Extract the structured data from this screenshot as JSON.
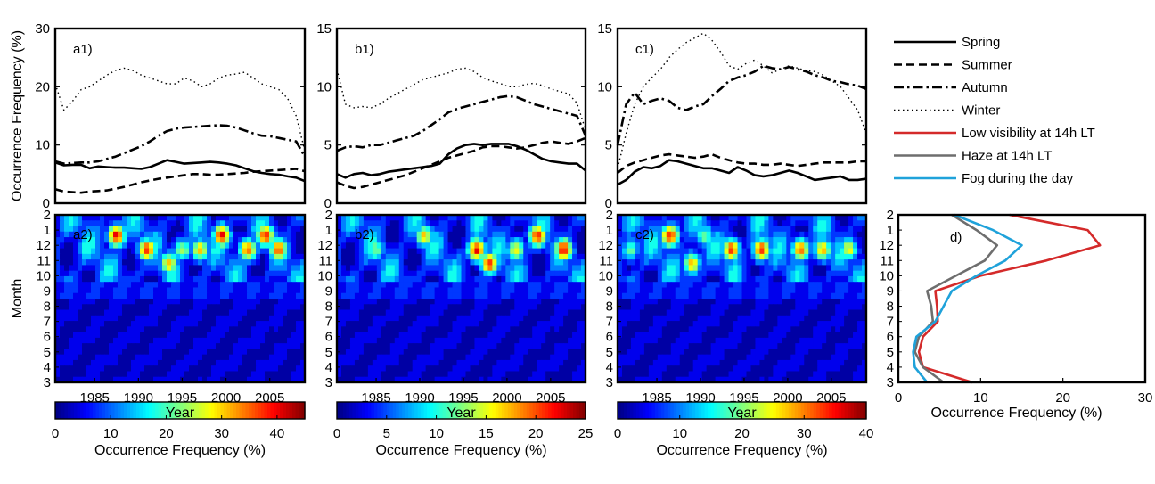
{
  "chart_data": [
    {
      "panel": "a1",
      "type": "line",
      "ylabel": "Occurrence Frequency (%)",
      "ylim": [
        0,
        30
      ],
      "yticks": [
        "0",
        "10",
        "20",
        "30"
      ],
      "xlim": [
        1980,
        2009
      ],
      "x": [
        1980,
        1981,
        1982,
        1983,
        1984,
        1985,
        1986,
        1987,
        1988,
        1989,
        1990,
        1991,
        1992,
        1993,
        1994,
        1995,
        1996,
        1997,
        1998,
        1999,
        2000,
        2001,
        2002,
        2003,
        2004,
        2005,
        2006,
        2007,
        2008,
        2009
      ],
      "series": [
        {
          "name": "Spring",
          "style": "solid",
          "values": [
            7.0,
            6.5,
            6.6,
            6.6,
            6.0,
            6.3,
            6.2,
            6.1,
            6.1,
            6.0,
            5.9,
            6.2,
            6.8,
            7.4,
            7.1,
            6.8,
            6.9,
            7.0,
            7.1,
            7.0,
            6.8,
            6.5,
            6.0,
            5.5,
            5.2,
            5.0,
            4.9,
            4.6,
            4.4,
            3.8
          ]
        },
        {
          "name": "Summer",
          "style": "dashed",
          "values": [
            2.4,
            2.0,
            1.9,
            1.8,
            2.0,
            2.1,
            2.2,
            2.5,
            2.8,
            3.2,
            3.6,
            3.9,
            4.2,
            4.4,
            4.6,
            4.8,
            5.0,
            5.0,
            4.9,
            4.9,
            5.0,
            5.1,
            5.2,
            5.4,
            5.5,
            5.6,
            5.7,
            5.8,
            5.9,
            5.5
          ]
        },
        {
          "name": "Autumn",
          "style": "dashdot",
          "values": [
            7.2,
            6.8,
            6.9,
            7.0,
            7.0,
            7.2,
            7.6,
            8.0,
            8.6,
            9.2,
            9.8,
            10.6,
            11.6,
            12.4,
            12.8,
            13.0,
            13.1,
            13.2,
            13.3,
            13.4,
            13.3,
            13.0,
            12.5,
            12.0,
            11.6,
            11.5,
            11.2,
            10.9,
            10.6,
            8.0
          ]
        },
        {
          "name": "Winter",
          "style": "dotted",
          "values": [
            20.5,
            16.0,
            17.5,
            19.5,
            20.0,
            21.0,
            22.0,
            22.8,
            23.2,
            22.8,
            22.0,
            21.5,
            21.0,
            20.5,
            20.5,
            21.5,
            21.0,
            20.0,
            20.5,
            21.5,
            22.0,
            22.2,
            22.5,
            21.5,
            20.5,
            20.0,
            19.5,
            18.0,
            15.0,
            9.0
          ]
        }
      ]
    },
    {
      "panel": "b1",
      "type": "line",
      "ylim": [
        0,
        15
      ],
      "yticks": [
        "0",
        "5",
        "10",
        "15"
      ],
      "xlim": [
        1980,
        2009
      ],
      "x": [
        1980,
        1981,
        1982,
        1983,
        1984,
        1985,
        1986,
        1987,
        1988,
        1989,
        1990,
        1991,
        1992,
        1993,
        1994,
        1995,
        1996,
        1997,
        1998,
        1999,
        2000,
        2001,
        2002,
        2003,
        2004,
        2005,
        2006,
        2007,
        2008,
        2009
      ],
      "series": [
        {
          "name": "Spring",
          "style": "solid",
          "values": [
            2.5,
            2.2,
            2.5,
            2.6,
            2.4,
            2.5,
            2.7,
            2.8,
            2.9,
            3.0,
            3.1,
            3.2,
            3.4,
            4.2,
            4.7,
            5.0,
            5.1,
            5.0,
            5.1,
            5.1,
            5.1,
            4.9,
            4.6,
            4.2,
            3.8,
            3.6,
            3.5,
            3.4,
            3.4,
            2.8
          ]
        },
        {
          "name": "Summer",
          "style": "dashed",
          "values": [
            1.8,
            1.5,
            1.3,
            1.4,
            1.6,
            1.8,
            2.0,
            2.2,
            2.4,
            2.7,
            3.0,
            3.3,
            3.6,
            3.9,
            4.1,
            4.3,
            4.5,
            4.8,
            4.9,
            4.9,
            4.8,
            4.7,
            4.8,
            5.0,
            5.2,
            5.3,
            5.2,
            5.1,
            5.3,
            5.6
          ]
        },
        {
          "name": "Autumn",
          "style": "dashdot",
          "values": [
            4.5,
            4.8,
            4.9,
            4.8,
            5.0,
            5.0,
            5.2,
            5.4,
            5.6,
            5.8,
            6.2,
            6.7,
            7.2,
            7.8,
            8.1,
            8.3,
            8.5,
            8.7,
            8.9,
            9.1,
            9.2,
            9.1,
            8.8,
            8.5,
            8.3,
            8.1,
            7.9,
            7.7,
            7.5,
            5.8
          ]
        },
        {
          "name": "Winter",
          "style": "dotted",
          "values": [
            11.5,
            8.5,
            8.2,
            8.3,
            8.2,
            8.5,
            9.0,
            9.4,
            9.8,
            10.2,
            10.6,
            10.8,
            11.0,
            11.2,
            11.5,
            11.6,
            11.3,
            10.8,
            10.5,
            10.3,
            10.0,
            10.0,
            10.2,
            10.3,
            10.1,
            9.8,
            9.6,
            9.4,
            8.6,
            6.3
          ]
        }
      ]
    },
    {
      "panel": "c1",
      "type": "line",
      "ylim": [
        0,
        15
      ],
      "yticks": [
        "0",
        "5",
        "10",
        "15"
      ],
      "xlim": [
        1980,
        2009
      ],
      "x": [
        1980,
        1981,
        1982,
        1983,
        1984,
        1985,
        1986,
        1987,
        1988,
        1989,
        1990,
        1991,
        1992,
        1993,
        1994,
        1995,
        1996,
        1997,
        1998,
        1999,
        2000,
        2001,
        2002,
        2003,
        2004,
        2005,
        2006,
        2007,
        2008,
        2009
      ],
      "series": [
        {
          "name": "Spring",
          "style": "solid",
          "values": [
            1.6,
            2.0,
            2.7,
            3.1,
            3.0,
            3.2,
            3.7,
            3.6,
            3.4,
            3.2,
            3.0,
            3.0,
            2.8,
            2.6,
            3.1,
            2.8,
            2.4,
            2.3,
            2.4,
            2.6,
            2.8,
            2.6,
            2.3,
            2.0,
            2.1,
            2.2,
            2.3,
            2.0,
            2.0,
            2.1
          ]
        },
        {
          "name": "Summer",
          "style": "dashed",
          "values": [
            2.6,
            3.2,
            3.5,
            3.7,
            3.9,
            4.1,
            4.2,
            4.1,
            4.0,
            3.9,
            4.0,
            4.2,
            3.9,
            3.7,
            3.5,
            3.4,
            3.4,
            3.3,
            3.3,
            3.4,
            3.3,
            3.2,
            3.3,
            3.4,
            3.5,
            3.5,
            3.5,
            3.5,
            3.6,
            3.6
          ]
        },
        {
          "name": "Autumn",
          "style": "dashdot",
          "values": [
            5.0,
            8.5,
            9.5,
            8.5,
            8.8,
            9.0,
            8.8,
            8.2,
            8.0,
            8.3,
            8.5,
            9.2,
            9.8,
            10.5,
            10.8,
            11.0,
            11.3,
            11.8,
            11.6,
            11.5,
            11.7,
            11.5,
            11.3,
            11.0,
            10.8,
            10.5,
            10.4,
            10.2,
            10.1,
            9.8
          ]
        },
        {
          "name": "Winter",
          "style": "dotted",
          "values": [
            3.0,
            6.0,
            8.5,
            10.0,
            10.8,
            11.5,
            12.5,
            13.2,
            13.8,
            14.2,
            14.6,
            14.0,
            13.0,
            11.8,
            11.5,
            12.0,
            12.3,
            11.8,
            11.2,
            11.5,
            11.8,
            11.6,
            11.4,
            11.3,
            11.0,
            10.5,
            10.0,
            9.0,
            8.0,
            6.0
          ]
        }
      ]
    },
    {
      "panel": "a2",
      "type": "heatmap",
      "xlabel": "Year",
      "ylabel": "Month",
      "xticks": [
        "1985",
        "1990",
        "1995",
        "2000",
        "2005"
      ],
      "months_axis": [
        "2",
        "1",
        "12",
        "11",
        "10",
        "9",
        "8",
        "7",
        "6",
        "5",
        "4",
        "3"
      ],
      "colorbar": {
        "min": 0,
        "max": 45,
        "ticks": [
          "0",
          "10",
          "20",
          "30",
          "40"
        ],
        "label": "Occurrence Frequency (%)"
      },
      "hotspots": [
        [
          1987.5,
          1,
          40
        ],
        [
          1991,
          12,
          37
        ],
        [
          1993.5,
          11,
          30
        ],
        [
          1997,
          12,
          30
        ],
        [
          1999.5,
          1,
          40
        ],
        [
          2002.5,
          12,
          35
        ],
        [
          2004.5,
          1,
          38
        ],
        [
          2006,
          12,
          36
        ],
        [
          1984,
          12,
          20
        ],
        [
          1995,
          12,
          25
        ]
      ]
    },
    {
      "panel": "b2",
      "type": "heatmap",
      "xlabel": "Year",
      "xticks": [
        "1985",
        "1990",
        "1995",
        "2000",
        "2005"
      ],
      "months_axis": [
        "2",
        "1",
        "12",
        "11",
        "10",
        "9",
        "8",
        "7",
        "6",
        "5",
        "4",
        "3"
      ],
      "colorbar": {
        "min": 0,
        "max": 25,
        "ticks": [
          "0",
          "5",
          "10",
          "15",
          "20",
          "25"
        ],
        "label": "Occurrence Frequency (%)"
      },
      "hotspots": [
        [
          1990.5,
          1,
          17
        ],
        [
          1996.5,
          12,
          22
        ],
        [
          1998,
          11,
          21
        ],
        [
          2003.5,
          1,
          22
        ],
        [
          2006.5,
          12,
          22
        ],
        [
          2001,
          12,
          16
        ],
        [
          1985,
          12,
          13
        ]
      ]
    },
    {
      "panel": "c2",
      "type": "heatmap",
      "xlabel": "Year",
      "xticks": [
        "1985",
        "1990",
        "1995",
        "2000",
        "2005"
      ],
      "months_axis": [
        "2",
        "1",
        "12",
        "11",
        "10",
        "9",
        "8",
        "7",
        "6",
        "5",
        "4",
        "3"
      ],
      "colorbar": {
        "min": 0,
        "max": 40,
        "ticks": [
          "0",
          "10",
          "20",
          "30",
          "40"
        ],
        "label": "Occurrence Frequency (%)"
      },
      "hotspots": [
        [
          1986.5,
          1,
          35
        ],
        [
          1989,
          11,
          27
        ],
        [
          1993.5,
          12,
          33
        ],
        [
          1997,
          12,
          33
        ],
        [
          2001.5,
          12,
          32
        ],
        [
          2004,
          12,
          27
        ],
        [
          2007,
          12,
          25
        ],
        [
          1990.5,
          1,
          20
        ],
        [
          1982,
          12,
          20
        ]
      ]
    },
    {
      "panel": "d",
      "type": "line",
      "xlabel": "Occurrence Frequency (%)",
      "xlim": [
        0,
        30
      ],
      "xticks": [
        "0",
        "10",
        "20",
        "30"
      ],
      "months_axis": [
        "2",
        "1",
        "12",
        "11",
        "10",
        "9",
        "8",
        "7",
        "6",
        "5",
        "4",
        "3"
      ],
      "series": [
        {
          "name": "Low visibility at 14h LT",
          "color": "#d42a2a",
          "values": [
            13.5,
            23.0,
            24.5,
            18.0,
            10.0,
            4.5,
            4.7,
            4.8,
            3.0,
            2.5,
            3.0,
            9.0
          ]
        },
        {
          "name": "Haze at 14h LT",
          "color": "#6e6e6e",
          "values": [
            6.5,
            9.5,
            12.0,
            10.5,
            7.0,
            3.5,
            4.0,
            4.2,
            2.5,
            2.0,
            3.0,
            5.5
          ]
        },
        {
          "name": "Fog during the day",
          "color": "#1fa2da",
          "values": [
            6.8,
            11.5,
            15.0,
            13.0,
            9.5,
            6.5,
            5.5,
            4.5,
            2.2,
            1.8,
            2.0,
            3.5
          ]
        }
      ]
    }
  ],
  "legend": [
    {
      "label": "Spring",
      "style": "solid",
      "color": "#000000"
    },
    {
      "label": "Summer",
      "style": "dashed",
      "color": "#000000"
    },
    {
      "label": "Autumn",
      "style": "dashdot",
      "color": "#000000"
    },
    {
      "label": "Winter",
      "style": "dotted",
      "color": "#000000"
    },
    {
      "label": "Low visibility at 14h LT",
      "style": "solid",
      "color": "#d42a2a"
    },
    {
      "label": "Haze at 14h LT",
      "style": "solid",
      "color": "#6e6e6e"
    },
    {
      "label": "Fog during the day",
      "style": "solid",
      "color": "#1fa2da"
    }
  ],
  "panel_labels": {
    "a1": "a1)",
    "b1": "b1)",
    "c1": "c1)",
    "a2": "a2)",
    "b2": "b2)",
    "c2": "c2)",
    "d": "d)"
  }
}
